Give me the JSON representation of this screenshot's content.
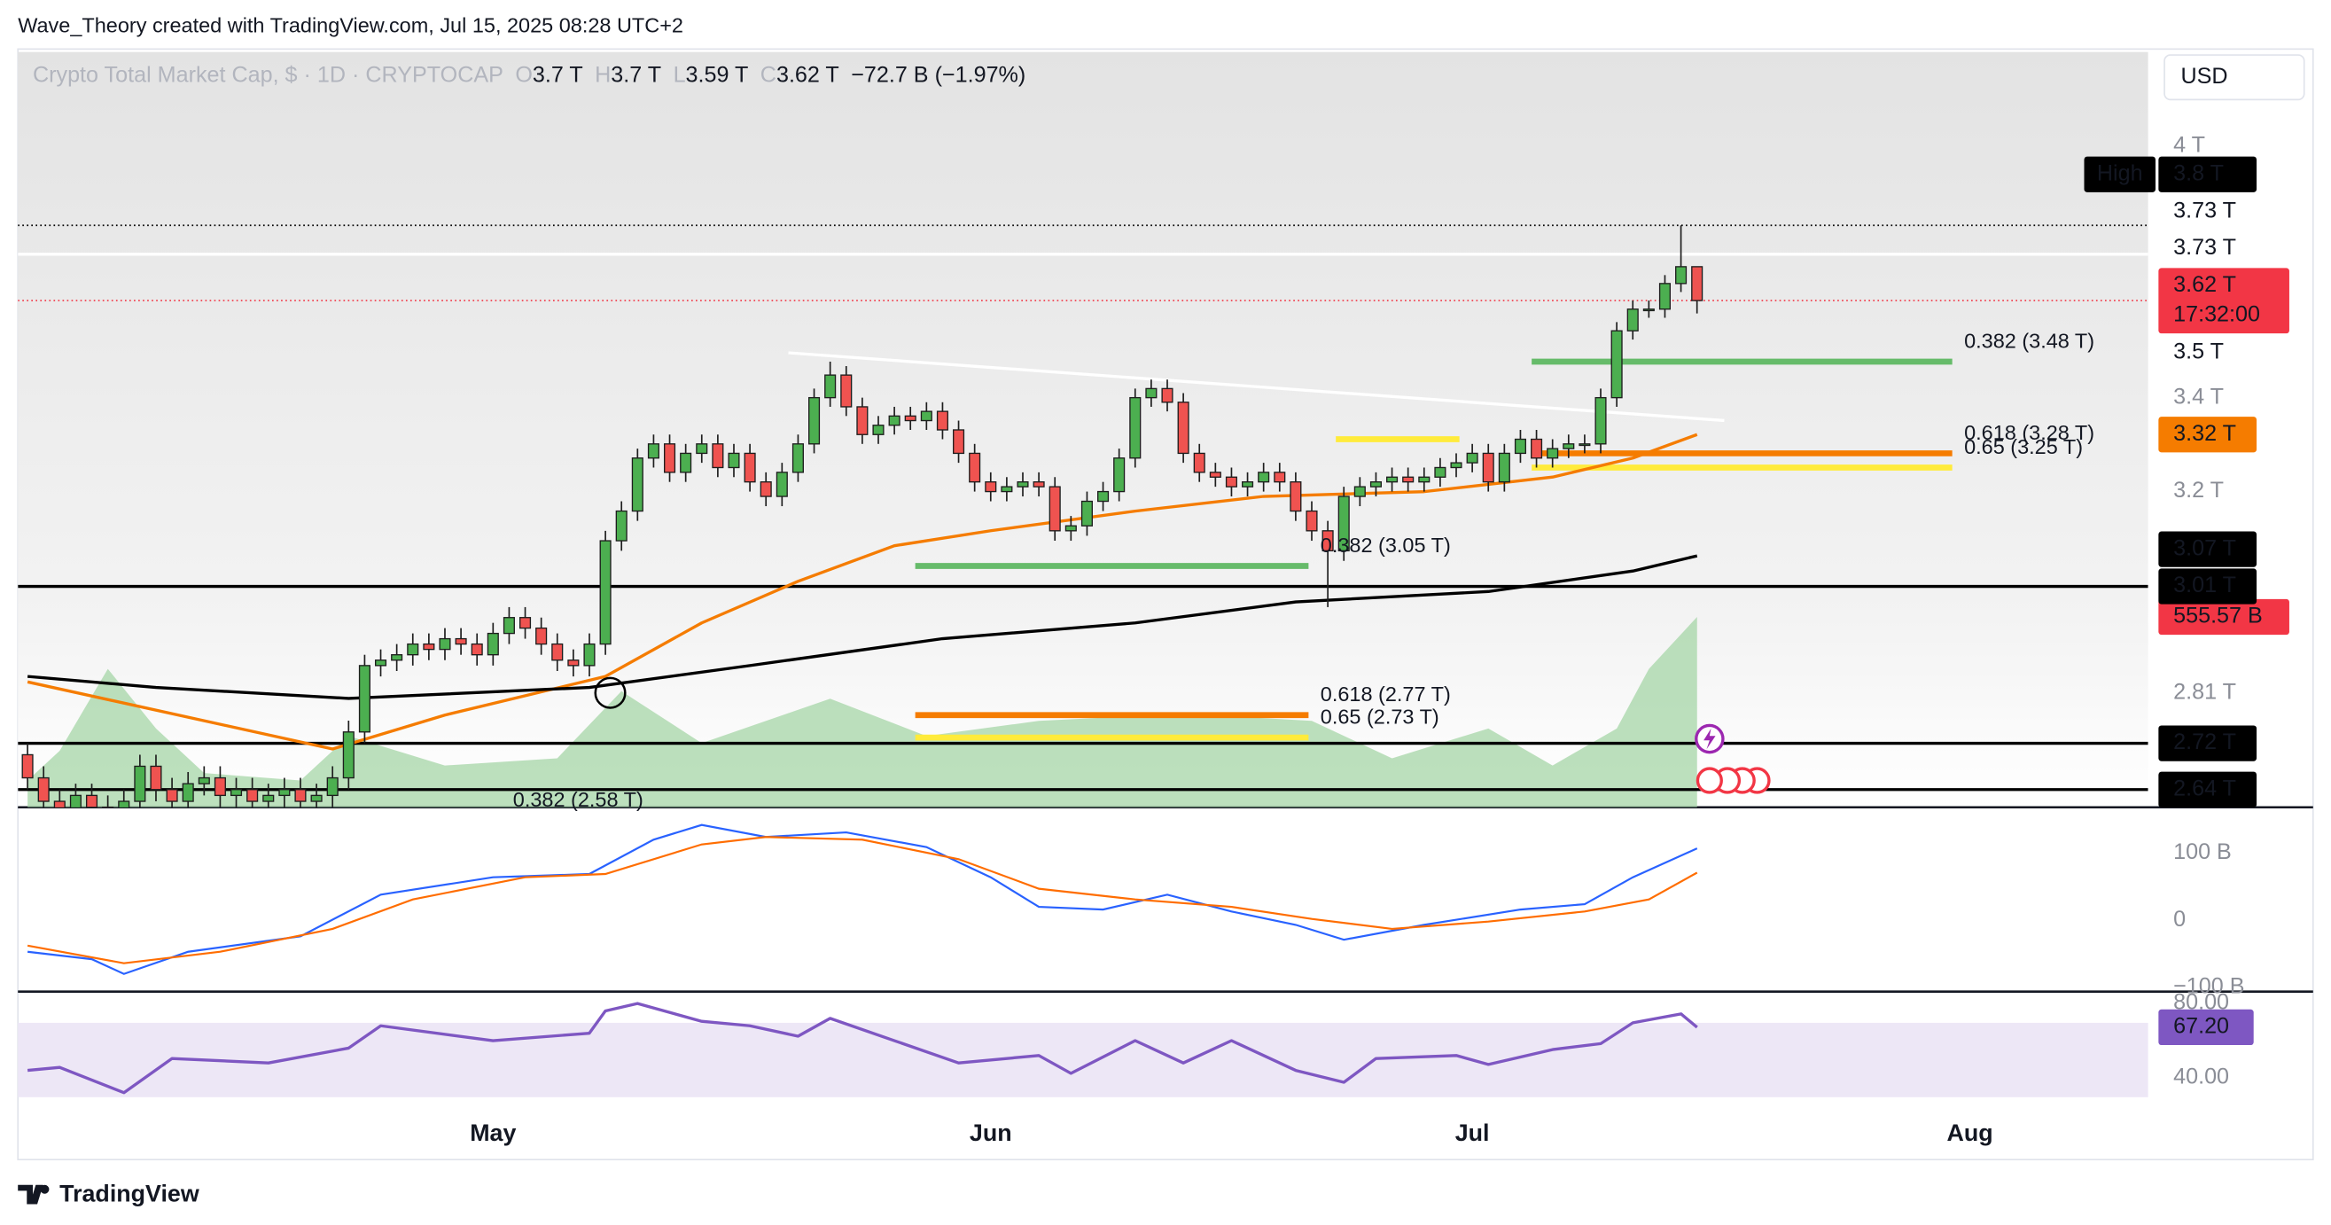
{
  "header": {
    "attribution": "Wave_Theory created with TradingView.com, Jul 15, 2025 08:28 UTC+2"
  },
  "footer": {
    "brand": "TradingView"
  },
  "chart_data": {
    "type": "candlestick",
    "title": "Crypto Total Market Cap, $ · 1D · CRYPTOCAP",
    "legend": [
      {
        "key": "O",
        "value": "3.7 T"
      },
      {
        "key": "H",
        "value": "3.7 T"
      },
      {
        "key": "L",
        "value": "3.59 T"
      },
      {
        "key": "C",
        "value": "3.62 T"
      }
    ],
    "change": "−72.7 B (−1.97%)",
    "currency": "USD",
    "log_scale": true,
    "up_color": "#4caf50",
    "down_color": "#ef5350",
    "border_color": "#1e1e1e",
    "xlim": [
      -0.6,
      132.1
    ],
    "xticks": [
      {
        "value": 29,
        "label": "May"
      },
      {
        "value": 60,
        "label": "Jun"
      },
      {
        "value": 90,
        "label": "Jul"
      },
      {
        "value": 121,
        "label": "Aug"
      }
    ],
    "ylim": [
      2.61,
      4.25
    ],
    "yticks": [
      {
        "value": 4,
        "label": "4 T"
      },
      {
        "value": 3.4,
        "label": "3.4 T"
      },
      {
        "value": 3.2,
        "label": "3.2 T"
      },
      {
        "value": 2.81,
        "label": "2.81 T"
      }
    ],
    "open": [
      2.7,
      2.66,
      2.62,
      2.6,
      2.63,
      2.61,
      2.58,
      2.62,
      2.68,
      2.64,
      2.62,
      2.65,
      2.66,
      2.63,
      2.64,
      2.62,
      2.63,
      2.64,
      2.62,
      2.63,
      2.66,
      2.74,
      2.86,
      2.87,
      2.88,
      2.9,
      2.89,
      2.91,
      2.9,
      2.88,
      2.92,
      2.95,
      2.93,
      2.9,
      2.87,
      2.86,
      2.9,
      3.1,
      3.16,
      3.27,
      3.3,
      3.24,
      3.28,
      3.3,
      3.25,
      3.28,
      3.22,
      3.19,
      3.24,
      3.3,
      3.4,
      3.45,
      3.38,
      3.32,
      3.34,
      3.36,
      3.35,
      3.37,
      3.33,
      3.28,
      3.22,
      3.2,
      3.21,
      3.22,
      3.21,
      3.12,
      3.13,
      3.18,
      3.2,
      3.27,
      3.4,
      3.42,
      3.39,
      3.28,
      3.24,
      3.23,
      3.21,
      3.22,
      3.24,
      3.22,
      3.16,
      3.12,
      3.08,
      3.19,
      3.21,
      3.22,
      3.23,
      3.22,
      3.23,
      3.25,
      3.26,
      3.28,
      3.22,
      3.28,
      3.31,
      3.27,
      3.29,
      3.3,
      3.3,
      3.4,
      3.55,
      3.6,
      3.6,
      3.66,
      3.7
    ],
    "high": [
      2.72,
      2.68,
      2.64,
      2.65,
      2.65,
      2.63,
      2.64,
      2.7,
      2.7,
      2.66,
      2.67,
      2.68,
      2.68,
      2.66,
      2.66,
      2.65,
      2.66,
      2.66,
      2.65,
      2.68,
      2.76,
      2.88,
      2.89,
      2.9,
      2.92,
      2.92,
      2.93,
      2.93,
      2.92,
      2.94,
      2.97,
      2.97,
      2.95,
      2.92,
      2.89,
      2.92,
      3.12,
      3.18,
      3.29,
      3.32,
      3.32,
      3.3,
      3.32,
      3.32,
      3.3,
      3.3,
      3.24,
      3.26,
      3.32,
      3.42,
      3.48,
      3.47,
      3.4,
      3.36,
      3.38,
      3.38,
      3.39,
      3.39,
      3.35,
      3.3,
      3.24,
      3.23,
      3.24,
      3.24,
      3.23,
      3.15,
      3.2,
      3.22,
      3.29,
      3.42,
      3.44,
      3.44,
      3.41,
      3.3,
      3.26,
      3.25,
      3.24,
      3.26,
      3.26,
      3.24,
      3.18,
      3.14,
      3.21,
      3.23,
      3.24,
      3.25,
      3.25,
      3.25,
      3.27,
      3.28,
      3.3,
      3.3,
      3.3,
      3.33,
      3.33,
      3.31,
      3.32,
      3.32,
      3.42,
      3.57,
      3.62,
      3.62,
      3.68,
      3.8,
      3.7
    ],
    "low": [
      2.64,
      2.6,
      2.58,
      2.58,
      2.59,
      2.56,
      2.56,
      2.6,
      2.62,
      2.6,
      2.6,
      2.63,
      2.61,
      2.61,
      2.6,
      2.6,
      2.61,
      2.6,
      2.6,
      2.61,
      2.64,
      2.72,
      2.84,
      2.85,
      2.86,
      2.87,
      2.87,
      2.88,
      2.86,
      2.86,
      2.9,
      2.91,
      2.88,
      2.85,
      2.84,
      2.84,
      2.88,
      3.08,
      3.14,
      3.25,
      3.22,
      3.22,
      3.26,
      3.23,
      3.23,
      3.2,
      3.17,
      3.17,
      3.22,
      3.28,
      3.38,
      3.36,
      3.3,
      3.3,
      3.32,
      3.33,
      3.33,
      3.31,
      3.26,
      3.2,
      3.18,
      3.18,
      3.19,
      3.19,
      3.1,
      3.1,
      3.11,
      3.16,
      3.18,
      3.25,
      3.38,
      3.37,
      3.26,
      3.22,
      3.21,
      3.19,
      3.19,
      3.2,
      3.2,
      3.14,
      3.1,
      2.97,
      3.06,
      3.17,
      3.19,
      3.2,
      3.2,
      3.2,
      3.21,
      3.23,
      3.24,
      3.2,
      3.2,
      3.26,
      3.25,
      3.25,
      3.27,
      3.28,
      3.28,
      3.38,
      3.53,
      3.58,
      3.58,
      3.64,
      3.59
    ],
    "close": [
      2.66,
      2.62,
      2.6,
      2.63,
      2.61,
      2.58,
      2.62,
      2.68,
      2.64,
      2.62,
      2.65,
      2.66,
      2.63,
      2.64,
      2.62,
      2.63,
      2.64,
      2.62,
      2.63,
      2.66,
      2.74,
      2.86,
      2.87,
      2.88,
      2.9,
      2.89,
      2.91,
      2.9,
      2.88,
      2.92,
      2.95,
      2.93,
      2.9,
      2.87,
      2.86,
      2.9,
      3.1,
      3.16,
      3.27,
      3.3,
      3.24,
      3.28,
      3.3,
      3.25,
      3.28,
      3.22,
      3.19,
      3.24,
      3.3,
      3.4,
      3.45,
      3.38,
      3.32,
      3.34,
      3.36,
      3.35,
      3.37,
      3.33,
      3.28,
      3.22,
      3.2,
      3.21,
      3.22,
      3.21,
      3.12,
      3.13,
      3.18,
      3.2,
      3.27,
      3.4,
      3.42,
      3.39,
      3.28,
      3.24,
      3.23,
      3.21,
      3.22,
      3.24,
      3.22,
      3.16,
      3.12,
      3.08,
      3.19,
      3.21,
      3.22,
      3.23,
      3.22,
      3.23,
      3.25,
      3.26,
      3.28,
      3.22,
      3.28,
      3.31,
      3.27,
      3.29,
      3.3,
      3.3,
      3.4,
      3.55,
      3.6,
      3.6,
      3.66,
      3.7,
      3.62
    ],
    "moving_averages": [
      {
        "color": "#f57c00",
        "x": [
          0,
          19,
          26,
          36,
          42,
          48,
          54,
          60,
          69,
          77,
          87,
          95,
          100,
          104
        ],
        "values": [
          2.83,
          2.71,
          2.77,
          2.84,
          2.94,
          3.02,
          3.09,
          3.12,
          3.16,
          3.19,
          3.2,
          3.23,
          3.27,
          3.32
        ]
      },
      {
        "color": "#000000",
        "x": [
          0,
          8,
          20,
          35,
          45,
          57,
          69,
          79,
          91,
          100,
          104
        ],
        "values": [
          2.84,
          2.82,
          2.8,
          2.82,
          2.86,
          2.91,
          2.94,
          2.98,
          3.0,
          3.04,
          3.07
        ]
      }
    ],
    "trendline": {
      "color": "#ffffff",
      "x": [
        47.4,
        105.7
      ],
      "values": [
        3.5,
        3.35
      ]
    },
    "levels": [
      {
        "value": 3.8,
        "color": "#000000",
        "style": "dotted"
      },
      {
        "value": 3.73,
        "color": "#ffffff",
        "style": "solid"
      },
      {
        "value": 3.62,
        "color": "#f23645",
        "style": "dotted"
      },
      {
        "value": 3.01,
        "color": "#000000",
        "style": "solid"
      },
      {
        "value": 2.72,
        "color": "#000000",
        "style": "solid"
      },
      {
        "value": 2.64,
        "color": "#000000",
        "style": "solid"
      }
    ],
    "fib_levels": [
      {
        "label": "0.382 (3.48 T)",
        "value": 3.48,
        "color": "#66bb6a",
        "x0": 93.7,
        "x1": 119.9
      },
      {
        "label": "0.618 (3.28 T)",
        "value": 3.28,
        "color": "#f57c00",
        "x0": 93.7,
        "x1": 119.9
      },
      {
        "label": "0.65 (3.25 T)",
        "value": 3.25,
        "color": "#ffeb3b",
        "x0": 93.7,
        "x1": 119.9
      },
      {
        "value": 3.31,
        "color": "#ffeb3b",
        "x0": 81.5,
        "x1": 89.2
      },
      {
        "label": "0.382 (3.05 T)",
        "value": 3.05,
        "color": "#66bb6a",
        "x0": 55.3,
        "x1": 79.8
      },
      {
        "label": "0.618 (2.77 T)",
        "value": 2.77,
        "color": "#f57c00",
        "x0": 55.3,
        "x1": 79.8
      },
      {
        "label": "0.65 (2.73 T)",
        "value": 2.73,
        "color": "#ffeb3b",
        "x0": 55.3,
        "x1": 79.8
      },
      {
        "label": "0.382 (2.58 T)",
        "value": 2.58,
        "color": "#9e9e9e",
        "x0": 10,
        "x1": 29.5
      }
    ],
    "markers": [
      {
        "x": 36.3,
        "value": 2.81
      }
    ],
    "price_labels": [
      {
        "value": 2.64,
        "label": "2.64 T",
        "bg": "#000000",
        "fg": "#ffffff"
      },
      {
        "value": 2.72,
        "label": "2.72 T",
        "bg": "#000000",
        "fg": "#ffffff"
      },
      {
        "value": 3.01,
        "label": "3.01 T",
        "bg": "#000000",
        "fg": "#ffffff"
      },
      {
        "value": 3.07,
        "label": "3.07 T",
        "bg": "#000000",
        "fg": "#ffffff"
      },
      {
        "value": 3.32,
        "label": "3.32 T",
        "bg": "#f57c00",
        "fg": "#ffffff"
      },
      {
        "value": 3.5,
        "label": "3.5 T",
        "bg": "#ffffff",
        "fg": "#131722"
      },
      {
        "value": 3.62,
        "label": "3.62 T",
        "countdown": "17:32:00",
        "bg": "#f23645",
        "fg": "#ffffff"
      },
      {
        "value": 3.73,
        "label": "3.73 T",
        "bg": "#ffffff",
        "fg": "#131722"
      },
      {
        "value": 3.73,
        "label": "3.73 T",
        "bg": "#ffffff",
        "fg": "#131722"
      },
      {
        "value": 3.8,
        "label": "3.8 T",
        "tag": "High",
        "bg": "#000000",
        "fg": "#ffffff"
      }
    ],
    "volume": {
      "color": "#a5d6a7",
      "ylim": [
        0,
        555.57
      ],
      "x": [
        0,
        2,
        5,
        8,
        11,
        17,
        20,
        26,
        33,
        37,
        42,
        50,
        56,
        63,
        72,
        80,
        85,
        91,
        95,
        99,
        101,
        104
      ],
      "values": [
        78,
        165,
        404,
        230,
        100,
        78,
        208,
        122,
        143,
        339,
        187,
        317,
        208,
        252,
        273,
        252,
        143,
        230,
        122,
        230,
        404,
        555.57
      ],
      "last": {
        "value": 555.57,
        "label": "555.57 B",
        "bg": "#f23645",
        "fg": "#ffffff"
      }
    },
    "macd": {
      "ylim": [
        -102,
        164
      ],
      "yticks": [
        {
          "value": 100,
          "label": "100 B"
        },
        0,
        {
          "value": -100,
          "label": "−100 B"
        }
      ],
      "series": [
        {
          "name": "MACD",
          "color": "#2962ff",
          "x": [
            0,
            4,
            6,
            10,
            17,
            22,
            29,
            35,
            39,
            42,
            46,
            51,
            56,
            60,
            63,
            67,
            71,
            75,
            79,
            82,
            87,
            93,
            97,
            100,
            104
          ],
          "values": [
            -47,
            -58,
            -80,
            -47,
            -24,
            38,
            64,
            69,
            120,
            142,
            124,
            131,
            109,
            64,
            20,
            16,
            38,
            13,
            -7,
            -29,
            -7,
            16,
            24,
            64,
            107
          ]
        },
        {
          "name": "Signal",
          "color": "#ff6d00",
          "x": [
            0,
            6,
            12,
            19,
            24,
            31,
            36,
            42,
            46,
            52,
            58,
            63,
            69,
            75,
            80,
            85,
            91,
            97,
            101,
            104
          ],
          "values": [
            -38,
            -64,
            -47,
            -13,
            31,
            64,
            69,
            113,
            124,
            120,
            91,
            47,
            31,
            20,
            2,
            -13,
            -2,
            13,
            31,
            71
          ]
        }
      ]
    },
    "rsi": {
      "ylim": [
        29.6,
        85.6
      ],
      "color": "#7e57c2",
      "yticks": [
        {
          "value": 80,
          "label": "80.00"
        },
        {
          "value": 40,
          "label": "40.00"
        }
      ],
      "x": [
        0,
        2,
        6,
        9,
        15,
        20,
        22,
        29,
        35,
        36,
        38,
        42,
        45,
        48,
        50,
        54,
        58,
        63,
        65,
        69,
        72,
        75,
        79,
        82,
        84,
        89,
        91,
        95,
        98,
        100,
        103,
        104
      ],
      "values": [
        44,
        45.6,
        32,
        50.4,
        48,
        56,
        68,
        60,
        64,
        76,
        80,
        70.4,
        68,
        62.4,
        72,
        60,
        48,
        52,
        42.4,
        60,
        48,
        60,
        44,
        37.6,
        50.4,
        52,
        47.2,
        55.2,
        58.4,
        69.6,
        74.4,
        67.2
      ],
      "last": {
        "value": 67.2,
        "label": "67.20",
        "bg": "#7e57c2",
        "fg": "#ffffff"
      }
    }
  }
}
